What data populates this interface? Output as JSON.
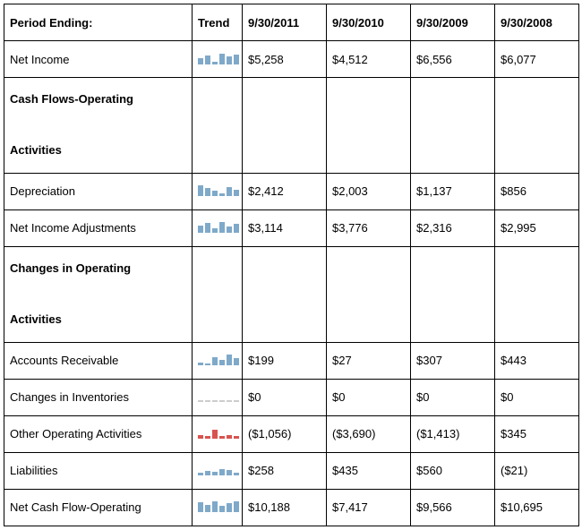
{
  "colors": {
    "bar_blue": "#7fa9c9",
    "bar_red": "#d9534f",
    "bar_gray": "#cccccc",
    "border": "#000000",
    "bg": "#ffffff"
  },
  "header": {
    "label": "Period Ending:",
    "trend": "Trend",
    "cols": [
      "9/30/2011",
      "9/30/2010",
      "9/30/2009",
      "9/30/2008"
    ]
  },
  "rows": [
    {
      "type": "data",
      "label": "Net Income",
      "values": [
        "$5,258",
        "$4,512",
        "$6,556",
        "$6,077"
      ],
      "spark": {
        "heights": [
          7,
          10,
          3,
          12,
          9,
          11
        ],
        "color": "#7fa9c9"
      }
    },
    {
      "type": "section",
      "label": "Cash Flows-Operating Activities"
    },
    {
      "type": "data",
      "label": "Depreciation",
      "values": [
        "$2,412",
        "$2,003",
        "$1,137",
        "$856"
      ],
      "spark": {
        "heights": [
          12,
          9,
          6,
          3,
          10,
          7
        ],
        "color": "#7fa9c9"
      }
    },
    {
      "type": "data",
      "label": "Net Income Adjustments",
      "values": [
        "$3,114",
        "$3,776",
        "$2,316",
        "$2,995"
      ],
      "spark": {
        "heights": [
          8,
          11,
          5,
          12,
          7,
          10
        ],
        "color": "#7fa9c9"
      }
    },
    {
      "type": "section",
      "label": "Changes in Operating Activities"
    },
    {
      "type": "data",
      "label": "Accounts Receivable",
      "values": [
        "$199",
        "$27",
        "$307",
        "$443"
      ],
      "spark": {
        "heights": [
          3,
          2,
          9,
          6,
          12,
          8
        ],
        "color": "#7fa9c9"
      }
    },
    {
      "type": "data",
      "label": "Changes in Inventories",
      "values": [
        "$0",
        "$0",
        "$0",
        "$0"
      ],
      "spark": {
        "heights": [
          2,
          2,
          2,
          2,
          2,
          2
        ],
        "color": "#cccccc"
      }
    },
    {
      "type": "data",
      "label": "Other Operating Activities",
      "values": [
        "($1,056)",
        "($3,690)",
        "($1,413)",
        "$345"
      ],
      "spark": {
        "heights": [
          4,
          3,
          10,
          3,
          4,
          3
        ],
        "color": "#d9534f"
      }
    },
    {
      "type": "data",
      "label": "Liabilities",
      "values": [
        "$258",
        "$435",
        "$560",
        "($21)"
      ],
      "spark": {
        "heights": [
          3,
          5,
          4,
          7,
          6,
          3
        ],
        "color": "#7fa9c9"
      }
    },
    {
      "type": "data",
      "label": "Net Cash Flow-Operating",
      "values": [
        "$10,188",
        "$7,417",
        "$9,566",
        "$10,695"
      ],
      "spark": {
        "heights": [
          11,
          8,
          12,
          7,
          10,
          12
        ],
        "color": "#7fa9c9"
      }
    }
  ]
}
